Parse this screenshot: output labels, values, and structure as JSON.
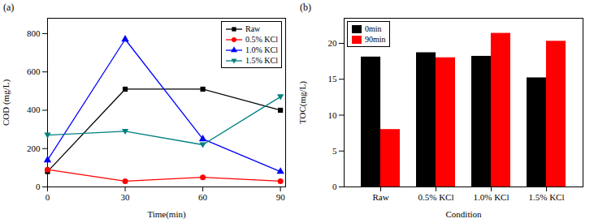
{
  "chart_data": [
    {
      "type": "line",
      "title": "(a)",
      "x_label": "Time(min)",
      "y_label": "COD (mg/L)",
      "x": [
        0,
        30,
        60,
        90
      ],
      "xlim": [
        0,
        92
      ],
      "xticks": [
        0,
        30,
        60,
        90
      ],
      "ylim": [
        0,
        880
      ],
      "yticks": [
        0,
        200,
        400,
        600,
        800
      ],
      "grid": false,
      "legend": "top-right",
      "series": [
        {
          "name": "Raw",
          "color": "#000000",
          "marker": "square",
          "values": [
            80,
            510,
            510,
            400
          ]
        },
        {
          "name": "0.5% KCl",
          "color": "#ff0000",
          "marker": "circle",
          "values": [
            90,
            30,
            50,
            30
          ]
        },
        {
          "name": "1.0% KCl",
          "color": "#0000ff",
          "marker": "triangle",
          "values": [
            140,
            770,
            250,
            80
          ]
        },
        {
          "name": "1.5% KCl",
          "color": "#008080",
          "marker": "triangle-down",
          "values": [
            270,
            290,
            220,
            470
          ]
        }
      ]
    },
    {
      "type": "bar",
      "title": "(b)",
      "x_label": "Condition",
      "y_label": "TOC(mg/L)",
      "categories": [
        "Raw",
        "0.5% KCl",
        "1.0% KCl",
        "1.5% KCl"
      ],
      "ylim": [
        0,
        23.5
      ],
      "yticks": [
        0,
        5,
        10,
        15,
        20
      ],
      "grid": false,
      "legend": "top-left",
      "series": [
        {
          "name": "0min",
          "color": "#000000",
          "values": [
            18.1,
            18.7,
            18.2,
            15.2
          ]
        },
        {
          "name": "90min",
          "color": "#ff0000",
          "values": [
            8.0,
            18.0,
            21.4,
            20.3
          ]
        }
      ]
    }
  ]
}
